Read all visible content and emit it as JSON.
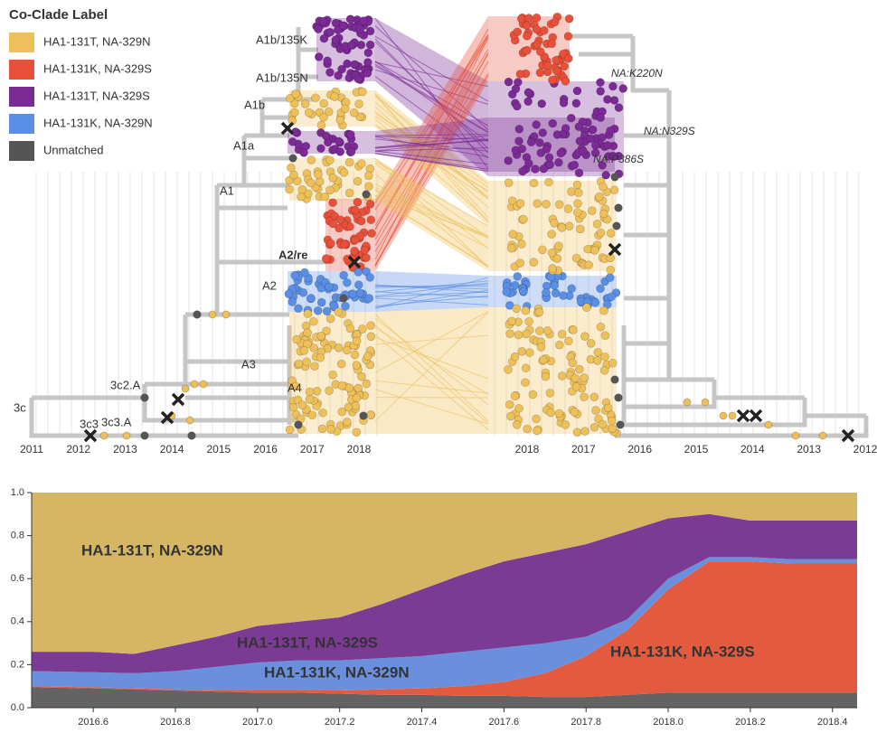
{
  "chart_data": [
    {
      "type": "tanglegram",
      "legend_title": "Co-Clade Label",
      "series": [
        {
          "name": "HA1-131T, NA-329N",
          "color": "#eec05a"
        },
        {
          "name": "HA1-131K, NA-329S",
          "color": "#e9503a"
        },
        {
          "name": "HA1-131T, NA-329S",
          "color": "#7b2a96"
        },
        {
          "name": "HA1-131K, NA-329N",
          "color": "#5b8fe6"
        },
        {
          "name": "Unmatched",
          "color": "#555555"
        }
      ],
      "clade_labels": [
        "A1b/135K",
        "A1b/135N",
        "A1b",
        "A1a",
        "A1",
        "A2/re",
        "A2",
        "A3",
        "A4",
        "3c2.A",
        "3c",
        "3c3",
        "3c3.A"
      ],
      "mutation_labels": [
        "NA:K220N",
        "NA:N329S",
        "NA:P386S"
      ],
      "left_xlim": [
        2011,
        2018
      ],
      "left_xticks": [
        2011,
        2012,
        2013,
        2014,
        2015,
        2016,
        2017,
        2018
      ],
      "right_xlim": [
        2018,
        2012
      ],
      "right_xticks": [
        2018,
        2017,
        2016,
        2015,
        2014,
        2013,
        2012
      ]
    },
    {
      "type": "area",
      "x": [
        2016.45,
        2016.6,
        2016.7,
        2016.8,
        2016.9,
        2017.0,
        2017.1,
        2017.2,
        2017.3,
        2017.4,
        2017.5,
        2017.6,
        2017.7,
        2017.8,
        2017.9,
        2018.0,
        2018.1,
        2018.2,
        2018.3,
        2018.4,
        2018.46
      ],
      "series": [
        {
          "name": "Unmatched",
          "color": "#636363",
          "values": [
            0.095,
            0.09,
            0.085,
            0.08,
            0.075,
            0.07,
            0.07,
            0.065,
            0.06,
            0.06,
            0.055,
            0.055,
            0.05,
            0.05,
            0.06,
            0.07,
            0.07,
            0.07,
            0.07,
            0.07,
            0.07
          ]
        },
        {
          "name": "HA1-131K, NA-329S",
          "color": "#e35a3e",
          "values": [
            0.005,
            0.005,
            0.005,
            0.005,
            0.005,
            0.01,
            0.01,
            0.015,
            0.025,
            0.03,
            0.045,
            0.065,
            0.11,
            0.19,
            0.3,
            0.48,
            0.61,
            0.61,
            0.6,
            0.6,
            0.6
          ]
        },
        {
          "name": "HA1-131K, NA-329N",
          "color": "#6a8fdc",
          "values": [
            0.07,
            0.07,
            0.07,
            0.085,
            0.11,
            0.13,
            0.14,
            0.14,
            0.145,
            0.15,
            0.16,
            0.16,
            0.14,
            0.09,
            0.05,
            0.05,
            0.02,
            0.02,
            0.02,
            0.02,
            0.02
          ]
        },
        {
          "name": "HA1-131T, NA-329S",
          "color": "#7b3a94",
          "values": [
            0.09,
            0.095,
            0.09,
            0.12,
            0.14,
            0.17,
            0.18,
            0.2,
            0.25,
            0.31,
            0.36,
            0.4,
            0.42,
            0.43,
            0.41,
            0.28,
            0.2,
            0.17,
            0.18,
            0.18,
            0.18
          ]
        },
        {
          "name": "HA1-131T, NA-329N",
          "color": "#d5b665",
          "values": [
            0.74,
            0.74,
            0.75,
            0.71,
            0.67,
            0.62,
            0.6,
            0.58,
            0.52,
            0.45,
            0.38,
            0.32,
            0.28,
            0.24,
            0.18,
            0.12,
            0.1,
            0.13,
            0.13,
            0.13,
            0.13
          ]
        }
      ],
      "xlim": [
        2016.45,
        2018.46
      ],
      "ylim": [
        0,
        1
      ],
      "xticks": [
        2016.6,
        2016.8,
        {
          "value": 2017,
          "label": "2017.0"
        },
        2017.2,
        2017.4,
        2017.6,
        2017.8,
        {
          "value": 2018,
          "label": "2018.0"
        },
        2018.2,
        2018.4
      ],
      "yticks": [
        {
          "value": 0,
          "label": "0.0"
        },
        0.2,
        0.4,
        0.6,
        0.8,
        {
          "value": 1,
          "label": "1.0"
        }
      ]
    }
  ]
}
